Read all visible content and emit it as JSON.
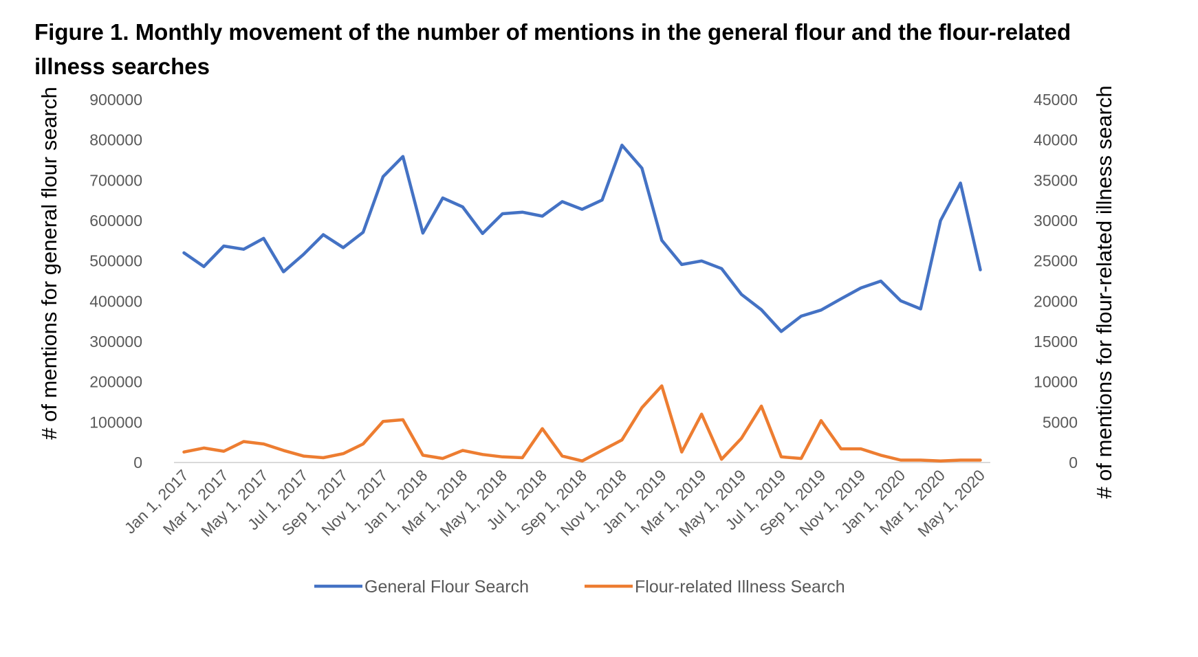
{
  "title": "Figure 1. Monthly movement of the number of mentions in the general flour and the flour-related illness searches",
  "chart_data": {
    "type": "line",
    "x": [
      "Jan 1, 2017",
      "Feb 1, 2017",
      "Mar 1, 2017",
      "Apr 1, 2017",
      "May 1, 2017",
      "Jun 1, 2017",
      "Jul 1, 2017",
      "Aug 1, 2017",
      "Sep 1, 2017",
      "Oct 1, 2017",
      "Nov 1, 2017",
      "Dec 1, 2017",
      "Jan 1, 2018",
      "Feb 1, 2018",
      "Mar 1, 2018",
      "Apr 1, 2018",
      "May 1, 2018",
      "Jun 1, 2018",
      "Jul 1, 2018",
      "Aug 1, 2018",
      "Sep 1, 2018",
      "Oct 1, 2018",
      "Nov 1, 2018",
      "Dec 1, 2018",
      "Jan 1, 2019",
      "Feb 1, 2019",
      "Mar 1, 2019",
      "Apr 1, 2019",
      "May 1, 2019",
      "Jun 1, 2019",
      "Jul 1, 2019",
      "Aug 1, 2019",
      "Sep 1, 2019",
      "Oct 1, 2019",
      "Nov 1, 2019",
      "Dec 1, 2019",
      "Jan 1, 2020",
      "Feb 1, 2020",
      "Mar 1, 2020",
      "Apr 1, 2020",
      "May 1, 2020"
    ],
    "x_tick_labels": [
      "Jan 1, 2017",
      "Mar 1, 2017",
      "May 1, 2017",
      "Jul 1, 2017",
      "Sep 1, 2017",
      "Nov 1, 2017",
      "Jan 1, 2018",
      "Mar 1, 2018",
      "May 1, 2018",
      "Jul 1, 2018",
      "Sep 1, 2018",
      "Nov 1, 2018",
      "Jan 1, 2019",
      "Mar 1, 2019",
      "May 1, 2019",
      "Jul 1, 2019",
      "Sep 1, 2019",
      "Nov 1, 2019",
      "Jan 1, 2020",
      "Mar 1, 2020",
      "May 1, 2020"
    ],
    "series": [
      {
        "name": "General Flour Search",
        "axis": "left",
        "color": "#4472C4",
        "values": [
          520000,
          486000,
          537000,
          529000,
          556000,
          473000,
          516000,
          565000,
          533000,
          571000,
          709000,
          759000,
          569000,
          656000,
          634000,
          568000,
          617000,
          621000,
          611000,
          647000,
          628000,
          651000,
          787000,
          730000,
          551000,
          491000,
          500000,
          481000,
          417000,
          379000,
          325000,
          363000,
          378000,
          406000,
          433000,
          450000,
          401000,
          381000,
          600000,
          693000,
          478000
        ]
      },
      {
        "name": "Flour-related Illness Search",
        "axis": "right",
        "color": "#ED7D31",
        "values": [
          1300,
          1800,
          1400,
          2600,
          2300,
          1500,
          800,
          600,
          1100,
          2300,
          5100,
          5300,
          900,
          500,
          1500,
          1000,
          700,
          600,
          4200,
          800,
          200,
          1500,
          2800,
          6800,
          9500,
          1300,
          6000,
          400,
          3000,
          7000,
          700,
          500,
          5200,
          1700,
          1700,
          900,
          300,
          300,
          200,
          300,
          300
        ]
      }
    ],
    "ylabel": "# of mentions for general flour search",
    "y2label": "# of mentions for flour-related illness search",
    "ylim": [
      0,
      900000
    ],
    "y2lim": [
      0,
      45000
    ],
    "y_ticks": [
      0,
      100000,
      200000,
      300000,
      400000,
      500000,
      600000,
      700000,
      800000,
      900000
    ],
    "y2_ticks": [
      0,
      5000,
      10000,
      15000,
      20000,
      25000,
      30000,
      35000,
      40000,
      45000
    ],
    "grid": false,
    "legend_position": "bottom"
  }
}
